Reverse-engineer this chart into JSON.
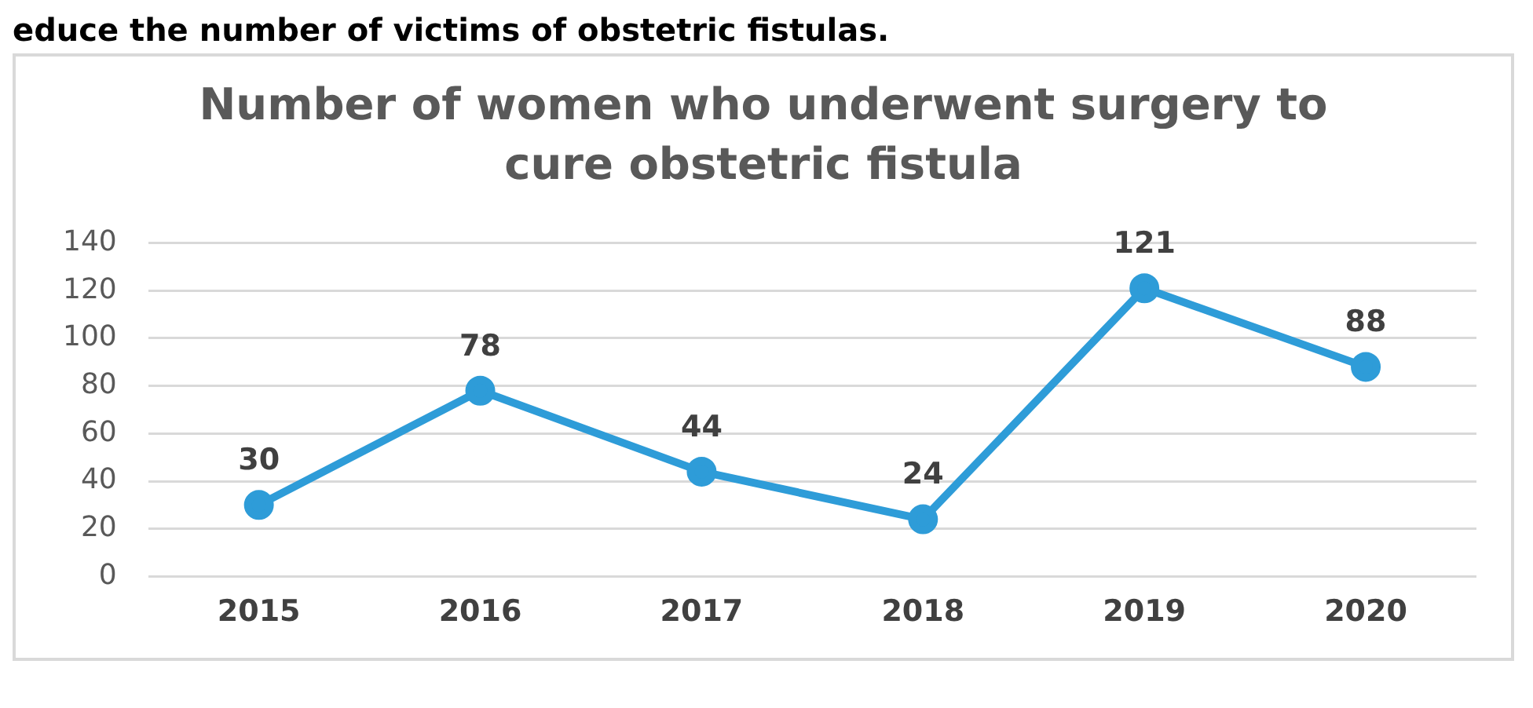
{
  "chart_data": {
    "type": "line",
    "title": "Number of women who underwent surgery to cure obstetric fistula",
    "annotations": [
      "educe the number of victims of obstetric fistulas."
    ],
    "categories": [
      "2015",
      "2016",
      "2017",
      "2018",
      "2019",
      "2020"
    ],
    "series": [
      {
        "color": "#2e9cd8",
        "values": [
          30,
          78,
          44,
          24,
          121,
          88
        ]
      }
    ],
    "ylim": [
      0,
      140
    ],
    "yticks": [
      0,
      20,
      40,
      60,
      80,
      100,
      120,
      140
    ],
    "grid": "y",
    "marker": "circle",
    "data_labels": true,
    "legend": false
  }
}
